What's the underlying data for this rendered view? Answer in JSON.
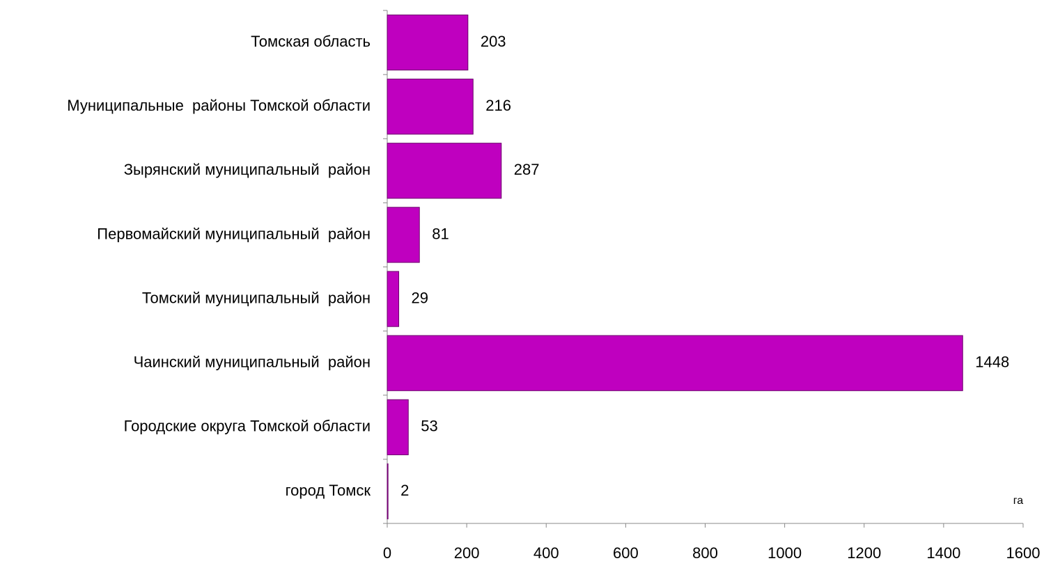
{
  "chart_data": {
    "type": "bar",
    "orientation": "horizontal",
    "categories": [
      "Томская область",
      "Муниципальные  районы Томской области",
      "Зырянский муниципальный  район",
      "Первомайский муниципальный  район",
      "Томский муниципальный  район",
      "Чаинский муниципальный  район",
      "Городские округа Томской области",
      "город Томск"
    ],
    "values": [
      203,
      216,
      287,
      81,
      29,
      1448,
      53,
      2
    ],
    "color": "#bf00bf",
    "xlim": [
      0,
      1600
    ],
    "xticks": [
      0,
      200,
      400,
      600,
      800,
      1000,
      1200,
      1400,
      1600
    ],
    "x_axis_unit": "га",
    "grid": false,
    "data_labels": true
  }
}
